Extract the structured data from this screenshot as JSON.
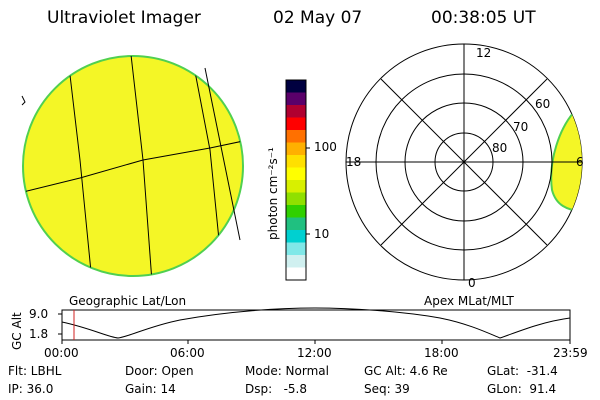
{
  "header": {
    "title": "Ultraviolet Imager",
    "date": "02 May 07",
    "time": "00:38:05 UT"
  },
  "colorbar": {
    "unit_label": "photon cm⁻²s⁻¹",
    "tick_100": "100",
    "tick_10": "10",
    "colors": [
      "#000040",
      "#5a006a",
      "#b00030",
      "#ff0000",
      "#ff7000",
      "#ffb000",
      "#ffe000",
      "#ffff00",
      "#d8f000",
      "#90e000",
      "#30d000",
      "#20c080",
      "#00d0d0",
      "#80e8e8",
      "#d0f0f0",
      "#ffffff"
    ]
  },
  "left_panel": {
    "label": "Geographic Lat/Lon",
    "fill_color": "#f4f626"
  },
  "right_panel": {
    "label": "Apex MLat/MLT",
    "mlt_labels": {
      "top": "12",
      "left": "18",
      "right": "6",
      "bottom": "0"
    },
    "lat_labels": [
      "60",
      "70",
      "80"
    ]
  },
  "orbit_plot": {
    "ylabel": "GC Alt",
    "ymax": "9.0",
    "ymin": "1.8",
    "xticks": [
      "00:00",
      "06:00",
      "12:00",
      "18:00",
      "23:59"
    ],
    "marker_color": "#d02020"
  },
  "footer": {
    "filter": "Flt: LBHL",
    "ip": "IP: 36.0",
    "door": "Door: Open",
    "gain": "Gain: 14",
    "mode": "Mode: Normal",
    "dsp": "Dsp:   -5.8",
    "gc_alt": "GC Alt: 4.6 Re",
    "seq": "Seq: 39",
    "glat": "GLat:  -31.4",
    "glon": "GLon:  91.4"
  }
}
